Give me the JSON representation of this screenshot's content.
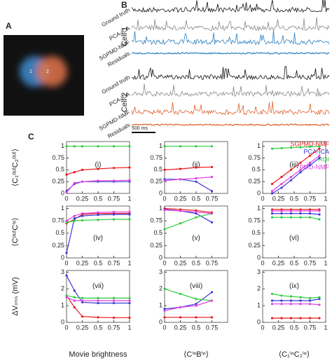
{
  "panels": {
    "a": "A",
    "b": "B",
    "c": "C"
  },
  "image_labels": [
    "1",
    "2"
  ],
  "traces": {
    "cells": [
      "Cell 1",
      "Cell 2"
    ],
    "labels": [
      "Ground truth",
      "PCA-ICA",
      "SGPMD-NMF",
      "Residuals"
    ],
    "scale_bar": "500 ms"
  },
  "legend": [
    {
      "name": "SGPMD-NMF",
      "color": "#e41a1c"
    },
    {
      "name": "PCA-ICA",
      "color": "#3a3ad6"
    },
    {
      "name": "ROI",
      "color": "#2ecc40"
    },
    {
      "name": "PMD-NMF",
      "color": "#e040e0"
    }
  ],
  "row_labels": [
    "⟨C₁ᵒᵘᵗC₂ᵒᵘᵗ⟩",
    "⟨CᵒᵘᵗCⁱⁿ⟩",
    "ΔVᵣₘₛ (mV)"
  ],
  "col_labels": [
    "Movie brightness",
    "⟨CⁱⁿBⁱⁿ⟩",
    "⟨C₁ⁱⁿC₂ⁱⁿ⟩"
  ],
  "chart_data": [
    {
      "type": "line",
      "title": "(i)",
      "x": [
        0,
        0.125,
        0.25,
        0.5,
        0.75,
        1
      ],
      "xlim": [
        0,
        1
      ],
      "ylim": [
        0,
        1.1
      ],
      "xticks": [
        0,
        0.25,
        0.5,
        0.75,
        1
      ],
      "yticks": [
        0,
        0.25,
        0.5,
        0.75,
        1
      ],
      "series": [
        {
          "values": [
            0.4,
            0.45,
            0.5,
            0.52,
            0.54,
            0.55
          ]
        },
        {
          "values": [
            0.05,
            0.2,
            0.25,
            0.25,
            0.25,
            0.25
          ]
        },
        {
          "values": [
            1,
            1,
            1,
            1,
            1,
            1
          ]
        },
        {
          "values": [
            0.02,
            0.22,
            0.25,
            0.27,
            0.27,
            0.28
          ]
        }
      ]
    },
    {
      "type": "line",
      "title": "(ii)",
      "x": [
        0,
        0.25,
        0.5,
        0.75
      ],
      "xlim": [
        0,
        1
      ],
      "ylim": [
        0,
        1.1
      ],
      "xticks": [
        0,
        0.25,
        0.5,
        0.75
      ],
      "yticks": [
        0,
        0.25,
        0.5,
        0.75,
        1
      ],
      "series": [
        {
          "values": [
            0.5,
            0.52,
            0.55,
            0.56
          ]
        },
        {
          "values": [
            0.3,
            0.3,
            0.25,
            0.05
          ]
        },
        {
          "values": [
            1,
            1,
            1,
            1
          ]
        },
        {
          "values": [
            0.27,
            0.3,
            0.32,
            0.35
          ]
        }
      ]
    },
    {
      "type": "line",
      "title": "(iii)",
      "x": [
        0.15,
        0.3,
        0.45,
        0.6,
        0.75,
        0.9
      ],
      "xlim": [
        0,
        1
      ],
      "ylim": [
        0,
        1.1
      ],
      "xticks": [
        0,
        0.25,
        0.5,
        0.75,
        1
      ],
      "yticks": [
        0,
        0.25,
        0.5,
        0.75,
        1
      ],
      "series": [
        {
          "values": [
            0.2,
            0.35,
            0.5,
            0.65,
            0.8,
            0.95
          ]
        },
        {
          "values": [
            0,
            0.12,
            0.28,
            0.45,
            0.6,
            0.75
          ]
        },
        {
          "values": [
            0.95,
            0.96,
            0.97,
            0.98,
            0.99,
            1
          ]
        },
        {
          "values": [
            0.05,
            0.2,
            0.35,
            0.5,
            0.65,
            0.8
          ]
        }
      ]
    },
    {
      "type": "line",
      "title": "(iv)",
      "x": [
        0,
        0.125,
        0.25,
        0.5,
        0.75,
        1
      ],
      "xlim": [
        0,
        1
      ],
      "ylim": [
        0,
        1.05
      ],
      "xticks": [
        0,
        0.25,
        0.5,
        0.75,
        1
      ],
      "yticks": [
        0,
        0.25,
        0.5,
        0.75,
        1
      ],
      "series": [
        {
          "values": [
            0.7,
            0.78,
            0.88,
            0.9,
            0.9,
            0.9
          ]
        },
        {
          "values": [
            0.1,
            0.8,
            0.85,
            0.87,
            0.88,
            0.88
          ]
        },
        {
          "values": [
            0.72,
            0.75,
            0.76,
            0.77,
            0.78,
            0.78
          ]
        },
        {
          "values": [
            0.75,
            0.85,
            0.9,
            0.92,
            0.93,
            0.93
          ]
        }
      ]
    },
    {
      "type": "line",
      "title": "(v)",
      "x": [
        0,
        0.25,
        0.5,
        0.75
      ],
      "xlim": [
        0,
        1
      ],
      "ylim": [
        0,
        1.05
      ],
      "xticks": [
        0,
        0.25,
        0.5,
        0.75
      ],
      "yticks": [
        0,
        0.25,
        0.5,
        0.75,
        1
      ],
      "series": [
        {
          "values": [
            1,
            0.98,
            0.96,
            0.92
          ]
        },
        {
          "values": [
            0.98,
            0.95,
            0.9,
            0.72
          ]
        },
        {
          "values": [
            0.58,
            0.7,
            0.82,
            0.9
          ]
        },
        {
          "values": [
            0.97,
            0.95,
            0.93,
            0.9
          ]
        }
      ]
    },
    {
      "type": "line",
      "title": "(vi)",
      "x": [
        0.15,
        0.3,
        0.45,
        0.6,
        0.75,
        0.9
      ],
      "xlim": [
        0,
        1
      ],
      "ylim": [
        0,
        1.05
      ],
      "xticks": [
        0,
        0.25,
        0.5,
        0.75,
        1
      ],
      "yticks": [
        0,
        0.25,
        0.5,
        0.75,
        1
      ],
      "series": [
        {
          "values": [
            0.98,
            0.98,
            0.98,
            0.98,
            0.98,
            0.98
          ]
        },
        {
          "values": [
            0.9,
            0.9,
            0.9,
            0.9,
            0.9,
            0.88
          ]
        },
        {
          "values": [
            0.82,
            0.82,
            0.82,
            0.82,
            0.82,
            0.78
          ]
        },
        {
          "values": [
            0.95,
            0.95,
            0.95,
            0.95,
            0.95,
            0.95
          ]
        }
      ]
    },
    {
      "type": "line",
      "title": "(vii)",
      "x": [
        0,
        0.125,
        0.25,
        0.5,
        0.75,
        1
      ],
      "xlim": [
        0,
        1
      ],
      "ylim": [
        0,
        3.1
      ],
      "xticks": [
        0,
        0.25,
        0.5,
        0.75,
        1
      ],
      "yticks": [
        0,
        1,
        2,
        3
      ],
      "series": [
        {
          "values": [
            1.6,
            0.9,
            0.35,
            0.3,
            0.28,
            0.28
          ]
        },
        {
          "values": [
            2.8,
            1.9,
            1.2,
            1.15,
            1.15,
            1.15
          ]
        },
        {
          "values": [
            1.6,
            1.5,
            1.45,
            1.45,
            1.45,
            1.45
          ]
        },
        {
          "values": [
            1.5,
            1.3,
            1.3,
            1.3,
            1.3,
            1.3
          ]
        }
      ]
    },
    {
      "type": "line",
      "title": "(viii)",
      "x": [
        0,
        0.25,
        0.5,
        0.75
      ],
      "xlim": [
        0,
        1
      ],
      "ylim": [
        0,
        3.1
      ],
      "xticks": [
        0,
        0.25,
        0.5,
        0.75
      ],
      "yticks": [
        0,
        1,
        2,
        3
      ],
      "series": [
        {
          "values": [
            0.3,
            0.3,
            0.3,
            0.3
          ]
        },
        {
          "values": [
            0.8,
            0.9,
            1.1,
            1.8
          ]
        },
        {
          "values": [
            2,
            1.7,
            1.4,
            1.3
          ]
        },
        {
          "values": [
            0.7,
            0.9,
            1.0,
            1.3
          ]
        }
      ]
    },
    {
      "type": "line",
      "title": "(ix)",
      "x": [
        0.15,
        0.3,
        0.45,
        0.6,
        0.75,
        0.9
      ],
      "xlim": [
        0,
        1
      ],
      "ylim": [
        0,
        3.1
      ],
      "xticks": [
        0,
        0.25,
        0.5,
        0.75,
        1
      ],
      "yticks": [
        0,
        1,
        2,
        3
      ],
      "series": [
        {
          "values": [
            0.25,
            0.25,
            0.25,
            0.25,
            0.25,
            0.25
          ]
        },
        {
          "values": [
            1.3,
            1.3,
            1.3,
            1.3,
            1.3,
            1.4
          ]
        },
        {
          "values": [
            1.7,
            1.6,
            1.55,
            1.5,
            1.45,
            1.5
          ]
        },
        {
          "values": [
            1.1,
            1.1,
            1.1,
            1.1,
            1.1,
            1.05
          ]
        }
      ]
    }
  ]
}
